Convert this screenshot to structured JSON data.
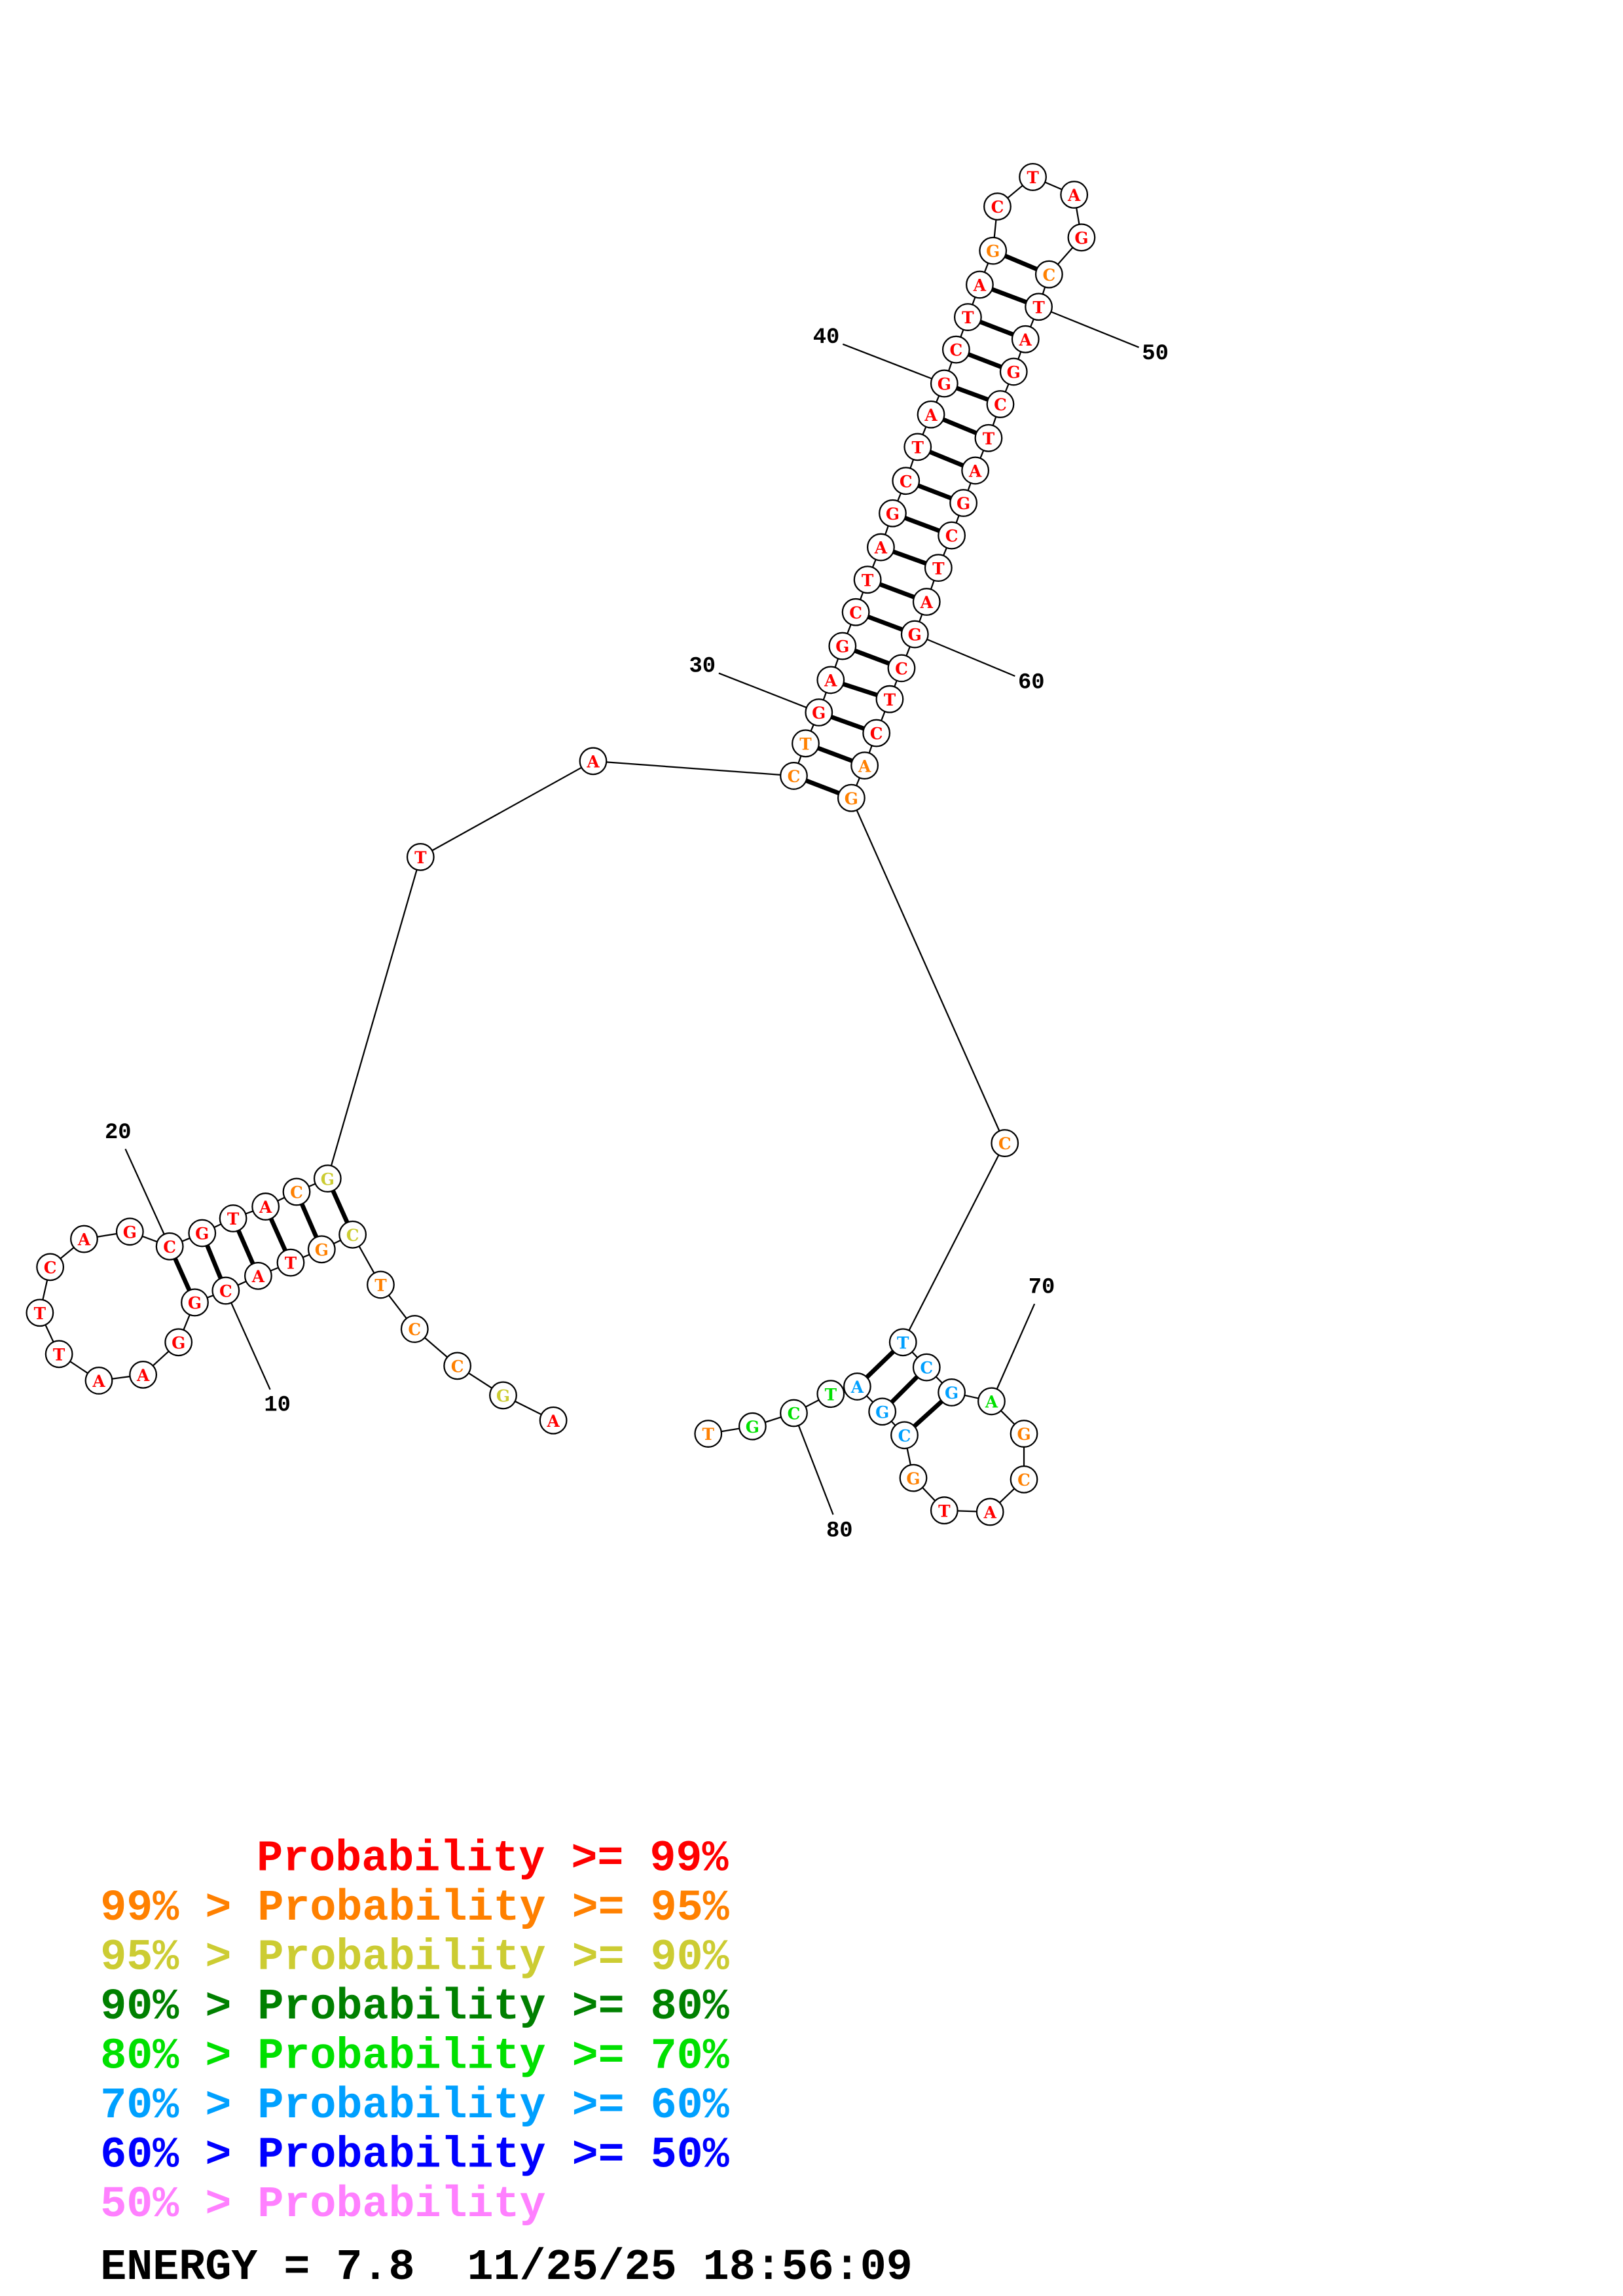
{
  "bases": [
    "A",
    "G",
    "C",
    "C",
    "T",
    "C",
    "G",
    "T",
    "A",
    "C",
    "G",
    "G",
    "A",
    "A",
    "T",
    "T",
    "C",
    "A",
    "G",
    "C",
    "G",
    "T",
    "A",
    "C",
    "G",
    "T",
    "A",
    "C",
    "T",
    "G",
    "A",
    "G",
    "C",
    "T",
    "A",
    "G",
    "C",
    "T",
    "A",
    "G",
    "C",
    "T",
    "A",
    "G",
    "C",
    "T",
    "A",
    "G",
    "C",
    "T",
    "A",
    "G",
    "C",
    "T",
    "A",
    "G",
    "C",
    "T",
    "A",
    "G",
    "C",
    "T",
    "C",
    "A",
    "G",
    "C",
    "T",
    "C",
    "G",
    "A",
    "G",
    "C",
    "A",
    "T",
    "G",
    "C",
    "G",
    "A",
    "T",
    "C",
    "G",
    "T"
  ],
  "base_colors": [
    "#ff0000",
    "#cccc33",
    "#ff8000",
    "#ff8000",
    "#ff8000",
    "#cccc33",
    "#ff8000",
    "#ff0000",
    "#ff0000",
    "#ff0000",
    "#ff0000",
    "#ff0000",
    "#ff0000",
    "#ff0000",
    "#ff0000",
    "#ff0000",
    "#ff0000",
    "#ff0000",
    "#ff0000",
    "#ff0000",
    "#ff0000",
    "#ff0000",
    "#ff0000",
    "#ff8000",
    "#cccc33",
    "#ff0000",
    "#ff0000",
    "#ff8000",
    "#ff8000",
    "#ff0000",
    "#ff0000",
    "#ff0000",
    "#ff0000",
    "#ff0000",
    "#ff0000",
    "#ff0000",
    "#ff0000",
    "#ff0000",
    "#ff0000",
    "#ff0000",
    "#ff0000",
    "#ff0000",
    "#ff0000",
    "#ff8000",
    "#ff0000",
    "#ff0000",
    "#ff0000",
    "#ff0000",
    "#ff8000",
    "#ff0000",
    "#ff0000",
    "#ff0000",
    "#ff0000",
    "#ff0000",
    "#ff0000",
    "#ff0000",
    "#ff0000",
    "#ff0000",
    "#ff0000",
    "#ff0000",
    "#ff0000",
    "#ff0000",
    "#ff0000",
    "#ff8000",
    "#ff8000",
    "#ff8000",
    "#00a0ff",
    "#00a0ff",
    "#00a0ff",
    "#00e000",
    "#ff8000",
    "#ff8000",
    "#ff0000",
    "#ff0000",
    "#ff8000",
    "#00a0ff",
    "#00a0ff",
    "#00a0ff",
    "#00e000",
    "#00e000",
    "#00e000",
    "#ff8000"
  ],
  "position_labels": [
    10,
    20,
    30,
    40,
    50,
    60,
    70,
    80
  ],
  "legend": [
    {
      "text": "Probability >= 99%",
      "color": "#ff0000"
    },
    {
      "text": "99% > Probability >= 95%",
      "color": "#ff8000"
    },
    {
      "text": "95% > Probability >= 90%",
      "color": "#cccc33"
    },
    {
      "text": "90% > Probability >= 80%",
      "color": "#008000"
    },
    {
      "text": "80% > Probability >= 70%",
      "color": "#00e000"
    },
    {
      "text": "70% > Probability >= 60%",
      "color": "#00a0ff"
    },
    {
      "text": "60% > Probability >= 50%",
      "color": "#0000ff"
    },
    {
      "text": "50% > Probability",
      "color": "#ff80ff"
    }
  ],
  "footer": "ENERGY = 7.8  11/25/25 18:56:09"
}
